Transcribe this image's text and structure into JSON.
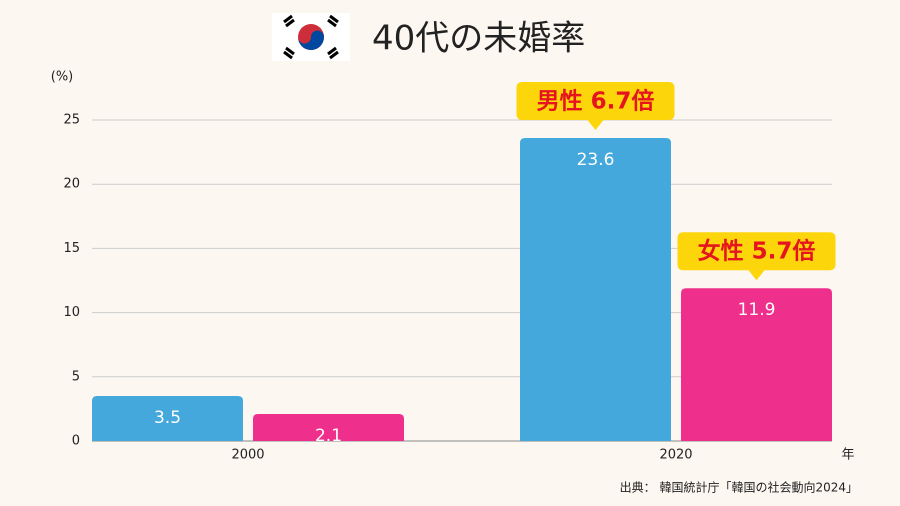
{
  "chart_data": {
    "type": "bar",
    "title": "40代の未婚率",
    "y_label": "(%)",
    "x_label": "年",
    "source": "出典： 韓国統計庁「韓国の社会動向2024」",
    "categories": [
      "2000",
      "2020"
    ],
    "series": [
      {
        "color": "#44a8dc",
        "values": [
          3.5,
          23.6
        ]
      },
      {
        "color": "#ef2f8c",
        "values": [
          2.1,
          11.9
        ]
      }
    ],
    "annotations": [
      "男性 6.7倍",
      "女性 5.7倍"
    ],
    "ylim": [
      0,
      25
    ],
    "yticks": [
      0,
      5,
      10,
      15,
      20,
      25
    ],
    "grid": true
  }
}
